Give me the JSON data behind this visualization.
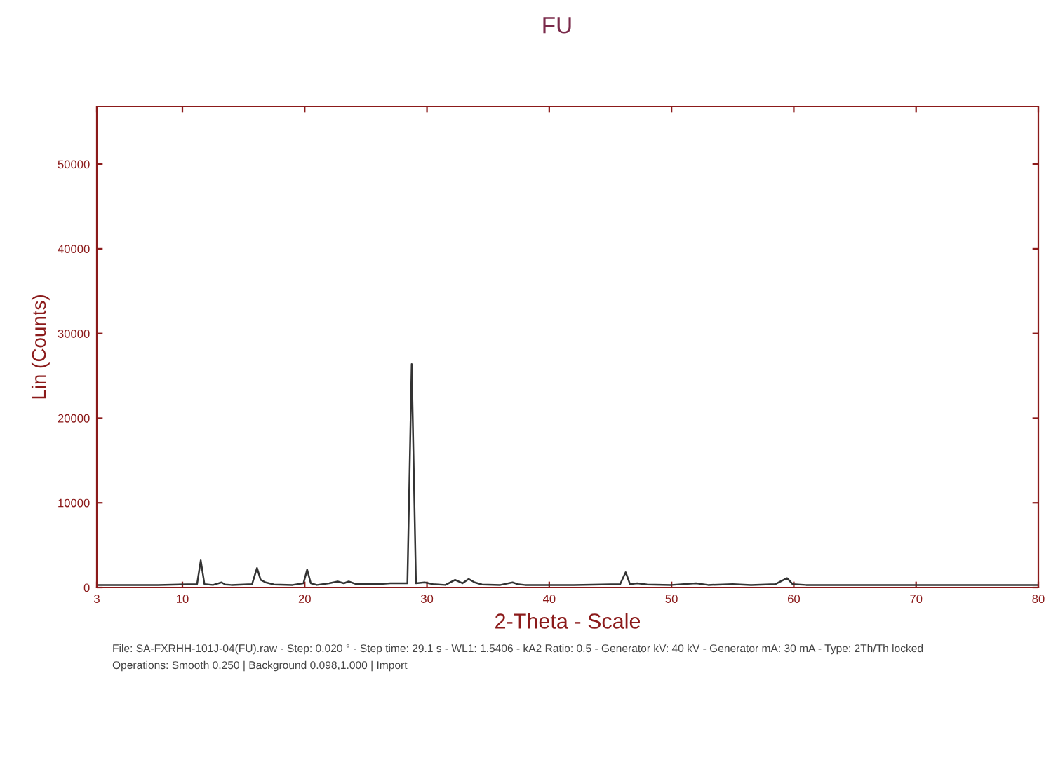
{
  "chart_data": {
    "type": "line",
    "title": "FU",
    "xlabel": "2-Theta - Scale",
    "ylabel": "Lin (Counts)",
    "xlim": [
      3,
      80
    ],
    "xticks": [
      3,
      10,
      20,
      30,
      40,
      50,
      60,
      70,
      80
    ],
    "ylim": [
      0,
      56800
    ],
    "yticks": [
      0,
      10000,
      20000,
      30000,
      40000,
      50000
    ],
    "grid": false,
    "marker": "none",
    "line_style": "solid",
    "series": [
      {
        "color": "#333333",
        "x": [
          3,
          8,
          11.2,
          11.5,
          11.8,
          12.5,
          13.2,
          13.5,
          14,
          15.7,
          16.1,
          16.4,
          16.8,
          17.5,
          19,
          19.9,
          20.2,
          20.5,
          21,
          22,
          22.7,
          23.2,
          23.6,
          24.2,
          25,
          26,
          27,
          28.4,
          28.75,
          29.1,
          29.8,
          30.5,
          31.5,
          32.3,
          32.9,
          33.4,
          33.9,
          34.5,
          36,
          37,
          37.4,
          38,
          40,
          42,
          45.8,
          46.25,
          46.6,
          47.2,
          48,
          50,
          52,
          53,
          55,
          56.5,
          58.5,
          59.45,
          59.9,
          61,
          65,
          70,
          75,
          80
        ],
        "values": [
          300,
          300,
          400,
          3200,
          400,
          300,
          600,
          350,
          300,
          400,
          2300,
          900,
          600,
          350,
          300,
          500,
          2100,
          500,
          300,
          500,
          700,
          500,
          700,
          400,
          450,
          400,
          500,
          500,
          26400,
          500,
          600,
          400,
          300,
          900,
          500,
          1000,
          600,
          350,
          300,
          600,
          400,
          300,
          300,
          300,
          400,
          1800,
          400,
          500,
          350,
          300,
          500,
          300,
          400,
          300,
          400,
          1100,
          400,
          300,
          300,
          300,
          300,
          300
        ]
      }
    ],
    "annotations": [
      "File: SA-FXRHH-101J-04(FU).raw - Step: 0.020 ° - Step time: 29.1 s - WL1: 1.5406 - kA2 Ratio: 0.5 - Generator kV: 40 kV - Generator mA: 30 mA - Type: 2Th/Th locked",
      "Operations: Smooth 0.250 | Background 0.098,1.000 | Import"
    ]
  }
}
